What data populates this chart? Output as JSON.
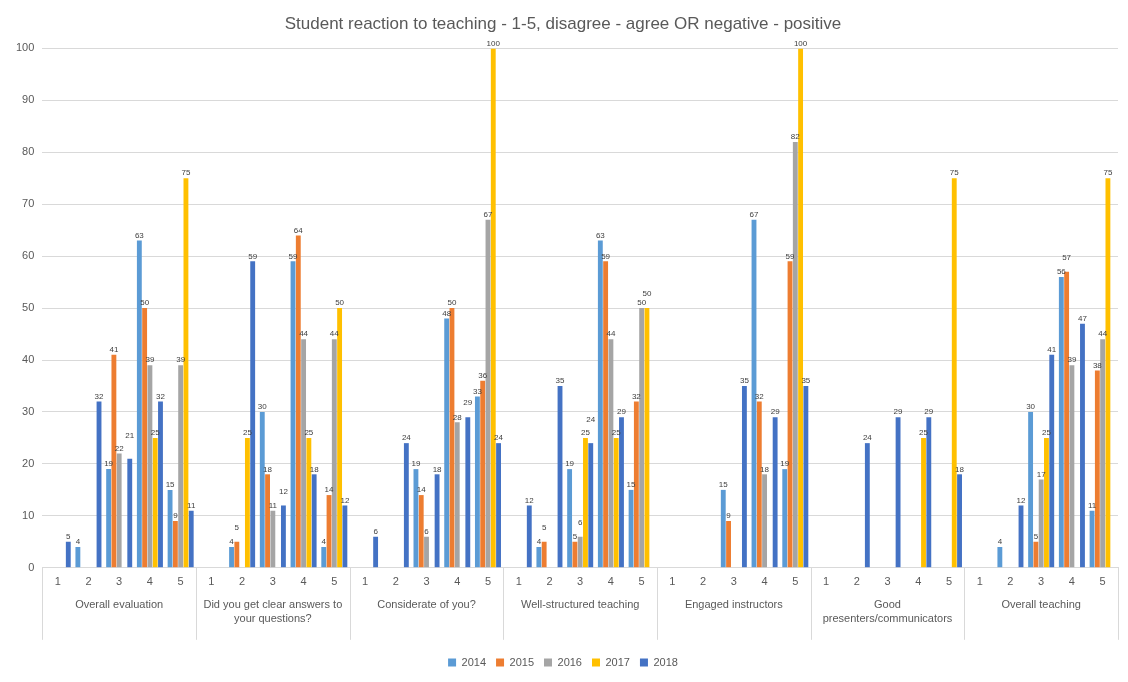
{
  "chart_data": {
    "type": "bar",
    "title": "Student reaction to teaching - 1-5, disagree - agree OR negative - positive",
    "categories": [
      "1",
      "2",
      "3",
      "4",
      "5",
      "1",
      "2",
      "3",
      "4",
      "5",
      "1",
      "2",
      "3",
      "4",
      "5",
      "1",
      "2",
      "3",
      "4",
      "5",
      "1",
      "2",
      "3",
      "4",
      "5",
      "1",
      "2",
      "3",
      "4",
      "5",
      "1",
      "2",
      "3",
      "4",
      "5"
    ],
    "annotations": [
      "Overall evaluation",
      "Did you get clear answers to your questions?",
      "Considerate of you?",
      "Well-structured teaching",
      "Engaged instructors",
      "Good presenters/communicators",
      "Overall teaching"
    ],
    "series": [
      {
        "name": "2014",
        "color": "#5b9bd5",
        "values": [
          null,
          4,
          19,
          63,
          15,
          null,
          4,
          30,
          59,
          4,
          null,
          null,
          19,
          48,
          33,
          null,
          4,
          19,
          63,
          15,
          null,
          null,
          15,
          67,
          19,
          null,
          null,
          null,
          null,
          null,
          null,
          4,
          30,
          56,
          11
        ]
      },
      {
        "name": "2015",
        "color": "#ed7d31",
        "values": [
          null,
          null,
          41,
          50,
          9,
          null,
          5,
          18,
          64,
          14,
          null,
          null,
          14,
          50,
          36,
          null,
          5,
          5,
          59,
          32,
          null,
          null,
          9,
          32,
          59,
          null,
          null,
          null,
          null,
          null,
          null,
          null,
          5,
          57,
          38
        ]
      },
      {
        "name": "2016",
        "color": "#a5a5a5",
        "values": [
          null,
          null,
          22,
          39,
          39,
          null,
          null,
          11,
          44,
          44,
          null,
          null,
          6,
          28,
          67,
          null,
          null,
          6,
          44,
          50,
          null,
          null,
          null,
          18,
          82,
          null,
          null,
          null,
          null,
          null,
          null,
          null,
          17,
          39,
          44
        ]
      },
      {
        "name": "2017",
        "color": "#ffc000",
        "values": [
          null,
          null,
          null,
          25,
          75,
          null,
          25,
          null,
          25,
          50,
          null,
          null,
          null,
          null,
          100,
          null,
          null,
          25,
          25,
          50,
          null,
          null,
          null,
          null,
          100,
          null,
          null,
          null,
          25,
          75,
          null,
          null,
          25,
          null,
          75
        ]
      },
      {
        "name": "2018",
        "color": "#4472c4",
        "values": [
          5,
          32,
          21,
          32,
          11,
          null,
          59,
          12,
          18,
          12,
          6,
          24,
          18,
          29,
          24,
          12,
          35,
          24,
          29,
          null,
          null,
          null,
          35,
          29,
          35,
          null,
          24,
          29,
          29,
          18,
          null,
          12,
          41,
          47,
          null
        ]
      }
    ],
    "ylim": [
      0,
      100
    ],
    "yticks": [
      0,
      10,
      20,
      30,
      40,
      50,
      60,
      70,
      80,
      90,
      100
    ],
    "grid": "y",
    "legend": "bottom",
    "data_labels": true
  }
}
